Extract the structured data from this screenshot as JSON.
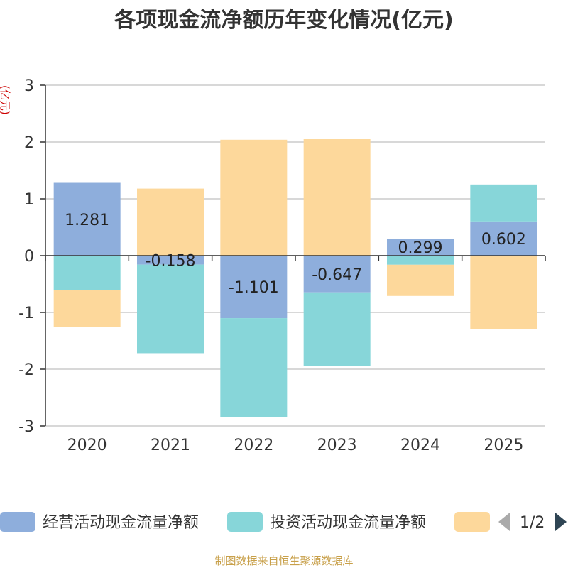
{
  "chart_data": {
    "type": "bar",
    "stacked": true,
    "title": "各项现金流净额历年变化情况(亿元)",
    "ylabel": "(亿元)",
    "categories": [
      "2020",
      "2021",
      "2022",
      "2023",
      "2024",
      "2025"
    ],
    "ylim": [
      -3,
      3
    ],
    "yticks": [
      3,
      2,
      1,
      0,
      -1,
      -2,
      -3
    ],
    "series": [
      {
        "name": "经营活动现金流量净额",
        "color": "#8eaedc",
        "values": [
          1.281,
          -0.158,
          -1.101,
          -0.647,
          0.299,
          0.602
        ]
      },
      {
        "name": "投资活动现金流量净额",
        "color": "#87d6d9",
        "values": [
          -0.6,
          -1.56,
          -1.74,
          -1.3,
          -0.16,
          0.65
        ]
      },
      {
        "name": "",
        "color": "#fdd89b",
        "values": [
          -0.65,
          1.18,
          2.04,
          2.05,
          -0.55,
          -1.3
        ]
      }
    ],
    "data_labels": [
      "1.281",
      "-0.158",
      "-1.101",
      "-0.647",
      "0.299",
      "0.602"
    ],
    "legend_position": "bottom",
    "legend_page": "1/2",
    "source": "制图数据来自恒生聚源数据库"
  },
  "colors": {
    "ylabel": "#cc0000",
    "source": "#c8a04a",
    "axis": "#333333",
    "grid": "#cccccc",
    "arrow_inactive": "#aaaaaa",
    "arrow_active": "#2f4554"
  }
}
